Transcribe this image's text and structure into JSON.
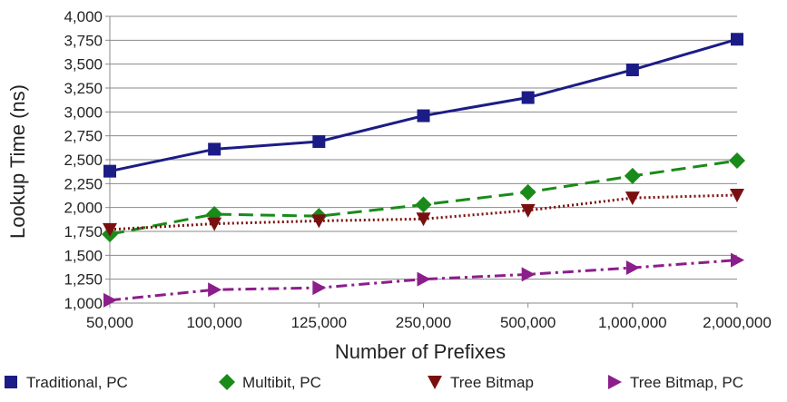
{
  "chart_data": {
    "type": "line",
    "title": "",
    "xlabel": "Number of Prefixes",
    "ylabel": "Lookup Time (ns)",
    "categories": [
      "50,000",
      "100,000",
      "125,000",
      "250,000",
      "500,000",
      "1,000,000",
      "2,000,000"
    ],
    "ylim": [
      1000,
      4000
    ],
    "yticks": [
      "1,000",
      "1,250",
      "1,500",
      "1,750",
      "2,000",
      "2,250",
      "2,500",
      "2,750",
      "3,000",
      "3,250",
      "3,500",
      "3,750",
      "4,000"
    ],
    "ytick_values": [
      1000,
      1250,
      1500,
      1750,
      2000,
      2250,
      2500,
      2750,
      3000,
      3250,
      3500,
      3750,
      4000
    ],
    "grid": true,
    "legend_position": "bottom",
    "series": [
      {
        "name": "Traditional, PC",
        "values": [
          2380,
          2610,
          2690,
          2960,
          3150,
          3440,
          3760
        ],
        "color": "#1c1c86",
        "marker": "square",
        "line_style": "solid"
      },
      {
        "name": "Multibit, PC",
        "values": [
          1720,
          1930,
          1910,
          2030,
          2160,
          2330,
          2490
        ],
        "color": "#1a8a1a",
        "marker": "diamond",
        "line_style": "dashed"
      },
      {
        "name": "Tree Bitmap",
        "values": [
          1770,
          1830,
          1860,
          1880,
          1970,
          2100,
          2130
        ],
        "color": "#7a0f0f",
        "marker": "triangle-down",
        "line_style": "dotted"
      },
      {
        "name": "Tree Bitmap, PC",
        "values": [
          1030,
          1140,
          1160,
          1250,
          1300,
          1370,
          1450
        ],
        "color": "#8b1e8b",
        "marker": "triangle-right",
        "line_style": "dash-dot"
      }
    ]
  }
}
